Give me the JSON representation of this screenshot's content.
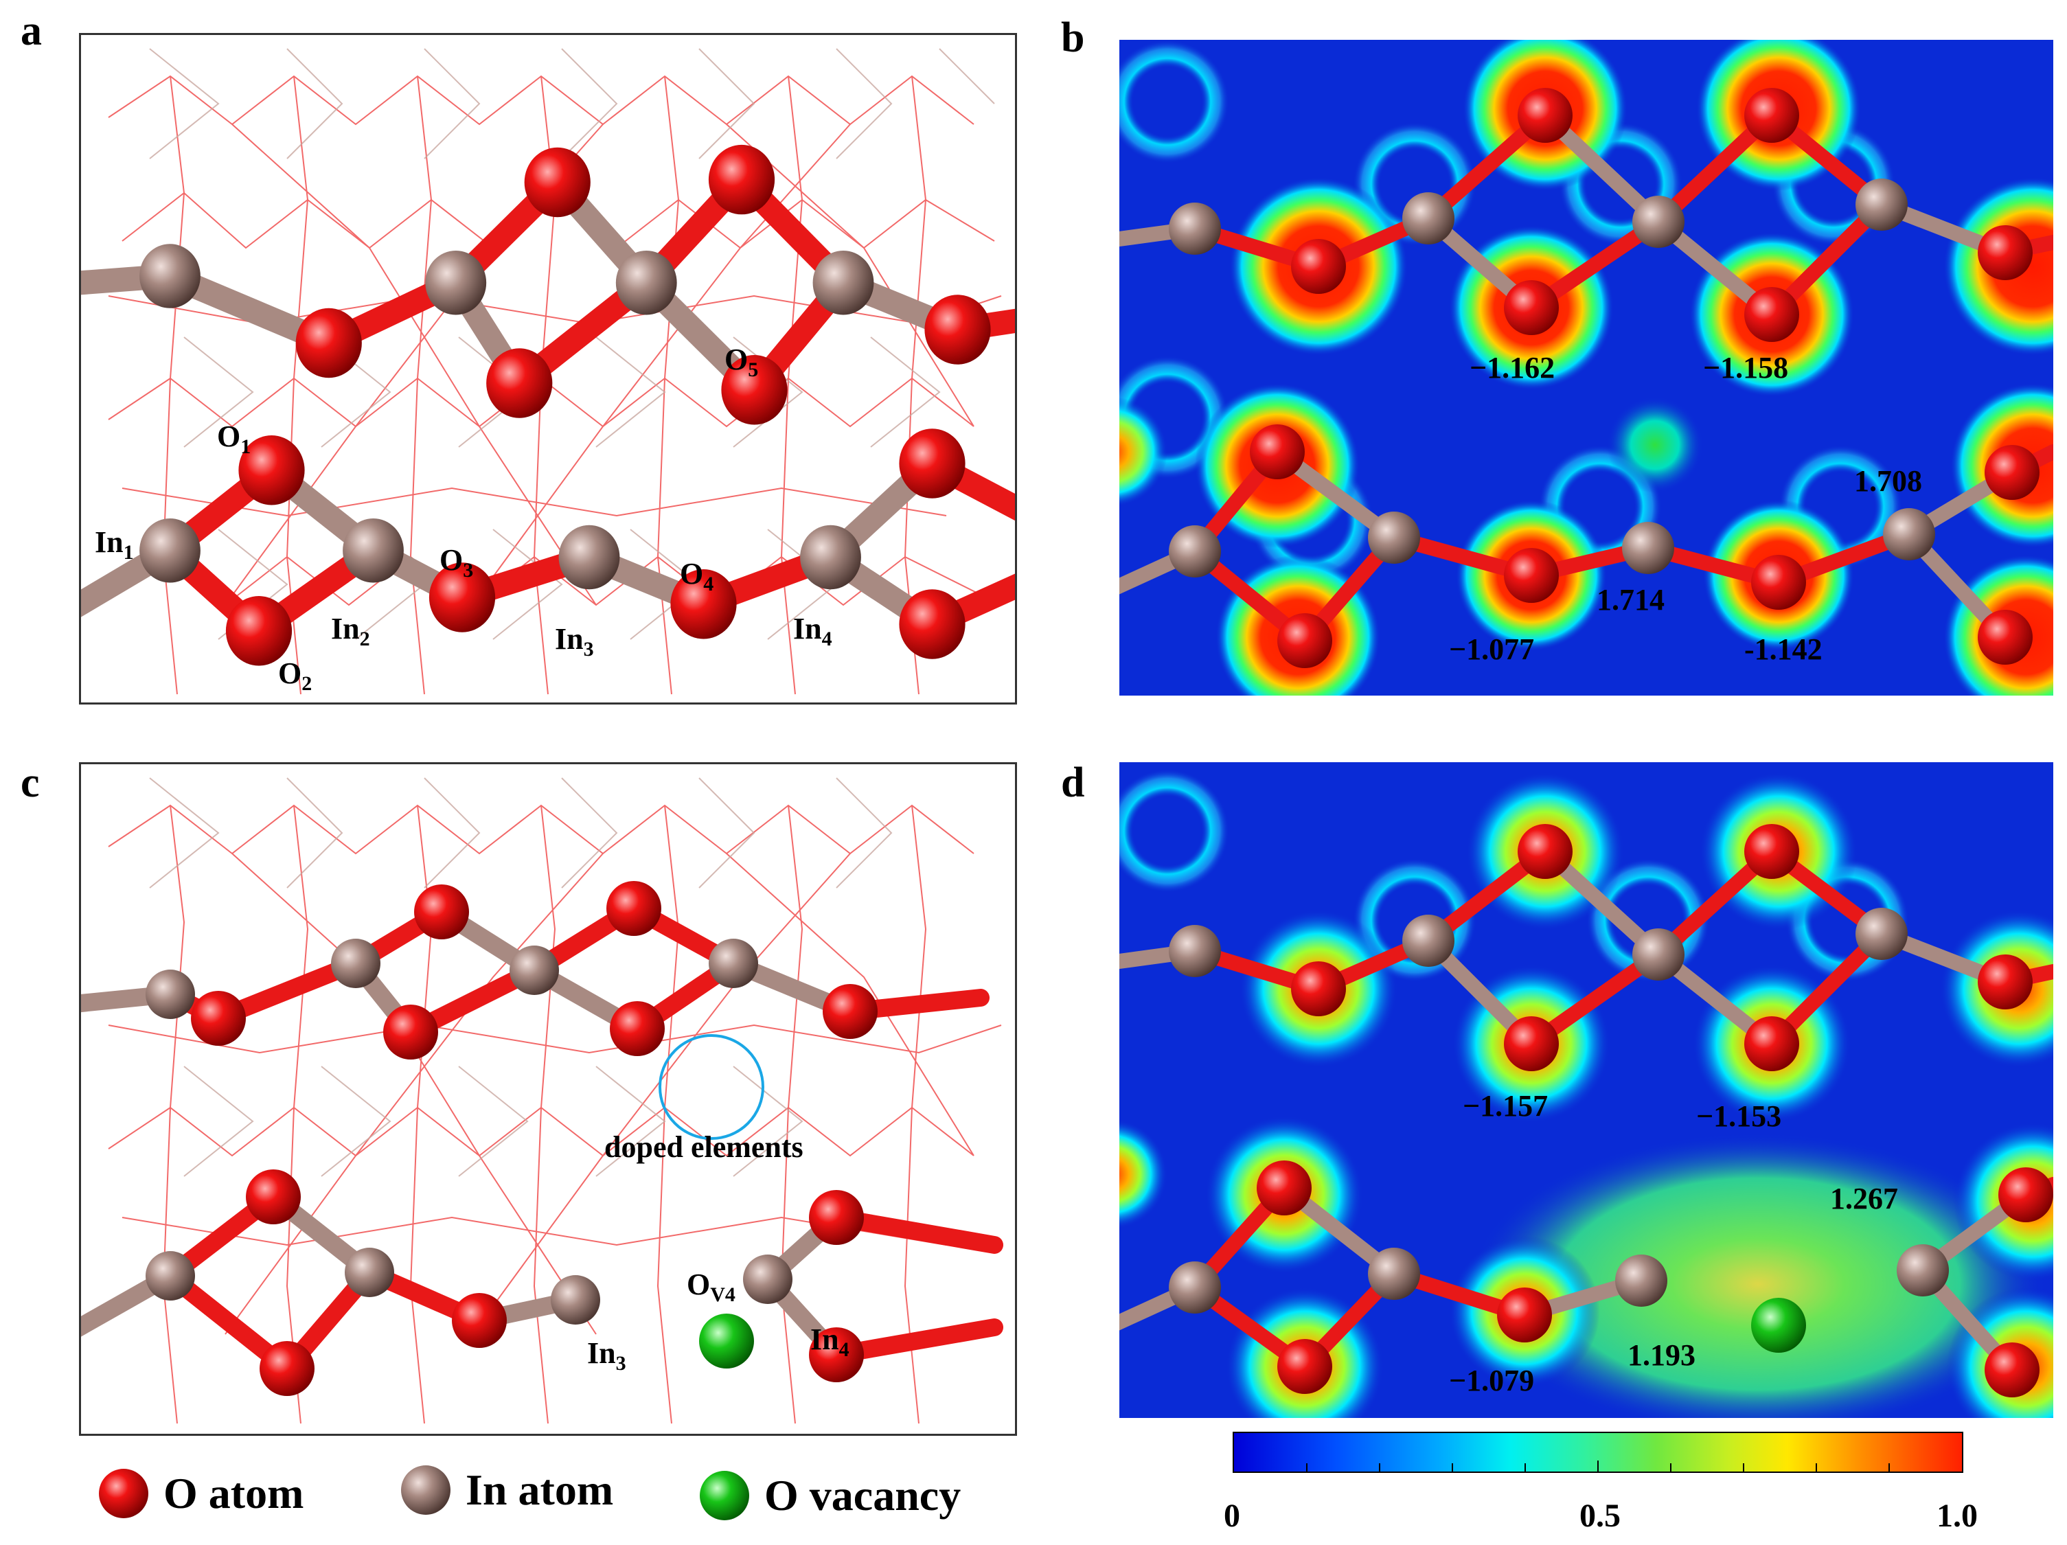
{
  "panels": {
    "a": {
      "letter": "a"
    },
    "b": {
      "letter": "b"
    },
    "c": {
      "letter": "c"
    },
    "d": {
      "letter": "d"
    }
  },
  "atom_labels_a": {
    "o1": "O",
    "o1_sub": "1",
    "o2": "O",
    "o2_sub": "2",
    "o3": "O",
    "o3_sub": "3",
    "o4": "O",
    "o4_sub": "4",
    "o5": "O",
    "o5_sub": "5",
    "in1": "In",
    "in1_sub": "1",
    "in2": "In",
    "in2_sub": "2",
    "in3": "In",
    "in3_sub": "3",
    "in4": "In",
    "in4_sub": "4"
  },
  "atom_labels_c": {
    "in3": "In",
    "in3_sub": "3",
    "in4": "In",
    "in4_sub": "4",
    "ov": "O",
    "ov_sub": "V4",
    "doped": "doped elements"
  },
  "charges_b": {
    "top_left": "−1.162",
    "top_right": "−1.158",
    "bot_left": "−1.077",
    "bot_right": "-1.142",
    "mid": "1.714",
    "right": "1.708"
  },
  "charges_d": {
    "top_left": "−1.157",
    "top_right": "−1.153",
    "bot_left": "−1.079",
    "mid": "1.193",
    "right": "1.267"
  },
  "legend": {
    "o_atom": "O atom",
    "in_atom": "In atom",
    "o_vacancy": "O vacancy"
  },
  "colorbar": {
    "min": "0",
    "mid": "0.5",
    "max": "1.0"
  },
  "colors": {
    "oxygen": "#e51010",
    "indium": "#9c7a72",
    "vacancy": "#18c418",
    "bond_red": "#e81818",
    "bond_in": "#a88a82"
  }
}
